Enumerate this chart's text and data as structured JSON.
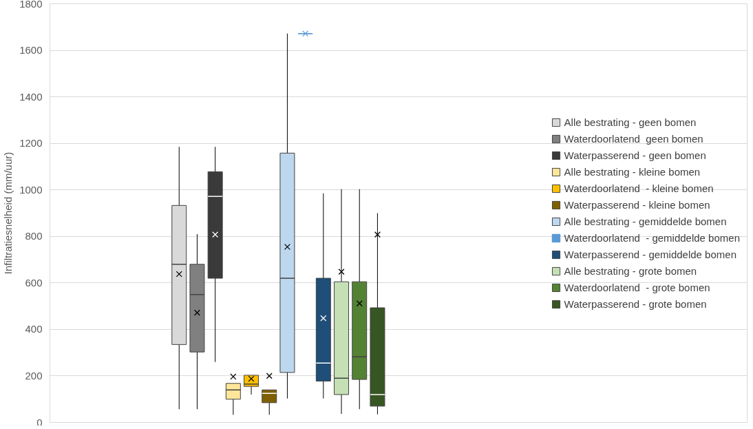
{
  "chart_data": {
    "type": "box",
    "ylabel": "Infiltratiesnelheid (mm/uur)",
    "categories": [
      null
    ],
    "ylim": [
      0,
      1800
    ],
    "yticks": [
      0,
      200,
      400,
      600,
      800,
      1000,
      1200,
      1400,
      1600,
      1800
    ],
    "grid": "y",
    "legend": "right",
    "marker": "cross",
    "series": [
      {
        "name": "Alle bestrating - geen bomen",
        "color": "#d9d9d9",
        "boxes": [
          {
            "low": 57,
            "q1": 335,
            "median": 680,
            "q3": 933,
            "high": 1185,
            "mean": 638
          }
        ]
      },
      {
        "name": "Waterdoorlatend  geen bomen",
        "color": "#808080",
        "boxes": [
          {
            "low": 57,
            "q1": 303,
            "median": 550,
            "q3": 680,
            "high": 810,
            "mean": 472
          }
        ]
      },
      {
        "name": "Waterpasserend - geen bomen",
        "color": "#3a3a3a",
        "boxes": [
          {
            "low": 260,
            "q1": 620,
            "median": 972,
            "q3": 1078,
            "high": 1185,
            "mean": 808
          }
        ]
      },
      {
        "name": "Alle bestrating - kleine bomen",
        "color": "#ffe699",
        "boxes": [
          {
            "low": 33,
            "q1": 100,
            "median": 140,
            "q3": 168,
            "high": 168,
            "mean": 197
          }
        ]
      },
      {
        "name": "Waterdoorlatend  - kleine bomen",
        "color": "#ffc000",
        "boxes": [
          {
            "low": 120,
            "q1": 155,
            "median": 165,
            "q3": 203,
            "high": 203,
            "mean": 188
          }
        ]
      },
      {
        "name": "Waterpasserend - kleine bomen",
        "color": "#7f6000",
        "boxes": [
          {
            "low": 33,
            "q1": 85,
            "median": 125,
            "q3": 140,
            "high": 140,
            "mean": 200
          }
        ]
      },
      {
        "name": "Alle bestrating - gemiddelde bomen",
        "color": "#bdd7ee",
        "boxes": [
          {
            "low": 103,
            "q1": 215,
            "median": 620,
            "q3": 1158,
            "high": 1672,
            "mean": 755
          }
        ]
      },
      {
        "name": "Waterdoorlatend  - gemiddelde bomen",
        "color": "#5b9bd5",
        "boxes": [
          {
            "low": 1672,
            "q1": 1672,
            "median": 1672,
            "q3": 1672,
            "high": 1672,
            "mean": 1672
          }
        ]
      },
      {
        "name": "Waterpasserend - gemiddelde bomen",
        "color": "#1f4e79",
        "boxes": [
          {
            "low": 103,
            "q1": 178,
            "median": 255,
            "q3": 620,
            "high": 985,
            "mean": 448
          }
        ]
      },
      {
        "name": "Alle bestrating - grote bomen",
        "color": "#c5e0b4",
        "boxes": [
          {
            "low": 37,
            "q1": 120,
            "median": 190,
            "q3": 605,
            "high": 1003,
            "mean": 648
          }
        ]
      },
      {
        "name": "Waterdoorlatend  - grote bomen",
        "color": "#548235",
        "boxes": [
          {
            "low": 57,
            "q1": 185,
            "median": 282,
            "q3": 605,
            "high": 1003,
            "mean": 512
          }
        ]
      },
      {
        "name": "Waterpasserend - grote bomen",
        "color": "#375623",
        "boxes": [
          {
            "low": 35,
            "q1": 70,
            "median": 120,
            "q3": 493,
            "high": 900,
            "mean": 808
          }
        ]
      }
    ]
  }
}
